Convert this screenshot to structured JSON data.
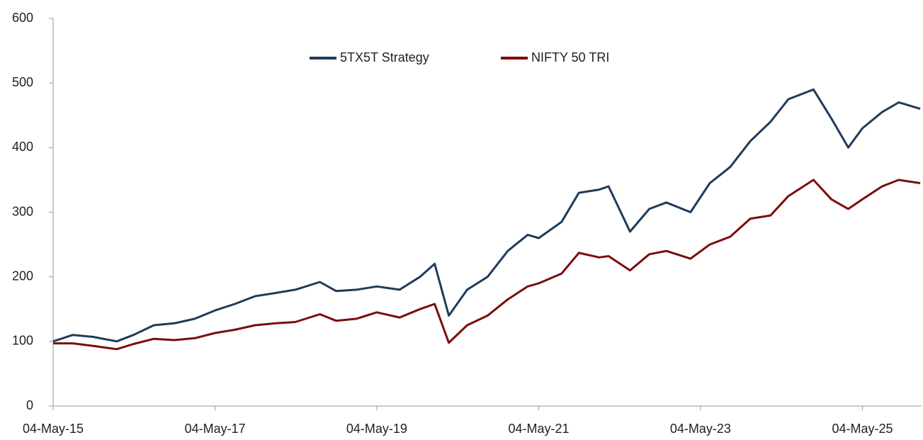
{
  "chart_data": {
    "type": "line",
    "x": [
      "2015-05-04",
      "2015-08-01",
      "2015-11-01",
      "2016-02-15",
      "2016-05-01",
      "2016-08-01",
      "2016-11-01",
      "2017-02-01",
      "2017-05-04",
      "2017-08-01",
      "2017-11-01",
      "2018-02-01",
      "2018-05-01",
      "2018-08-20",
      "2018-11-01",
      "2019-02-01",
      "2019-05-04",
      "2019-08-15",
      "2019-11-15",
      "2020-01-20",
      "2020-03-24",
      "2020-06-15",
      "2020-09-15",
      "2020-12-15",
      "2021-03-15",
      "2021-05-04",
      "2021-08-15",
      "2021-11-01",
      "2022-02-01",
      "2022-03-15",
      "2022-06-20",
      "2022-09-15",
      "2022-12-01",
      "2023-03-20",
      "2023-06-15",
      "2023-09-15",
      "2023-12-15",
      "2024-03-15",
      "2024-06-04",
      "2024-09-25",
      "2024-12-15",
      "2025-03-01",
      "2025-05-04",
      "2025-08-01",
      "2025-10-15",
      "2026-01-20"
    ],
    "series": [
      {
        "name": "5TX5T Strategy",
        "color": "#1f3b5a",
        "values": [
          100,
          110,
          107,
          100,
          110,
          125,
          128,
          135,
          148,
          158,
          170,
          175,
          180,
          192,
          178,
          180,
          185,
          180,
          200,
          220,
          140,
          180,
          200,
          240,
          265,
          260,
          285,
          330,
          335,
          340,
          270,
          305,
          315,
          300,
          345,
          370,
          410,
          440,
          475,
          490,
          445,
          400,
          430,
          455,
          470,
          460
        ]
      },
      {
        "name": "NIFTY 50 TRI",
        "color": "#7b0d0d",
        "values": [
          97,
          97,
          93,
          88,
          96,
          104,
          102,
          105,
          113,
          118,
          125,
          128,
          130,
          142,
          132,
          135,
          145,
          137,
          150,
          158,
          98,
          125,
          140,
          165,
          185,
          190,
          205,
          237,
          230,
          232,
          210,
          235,
          240,
          228,
          250,
          262,
          290,
          295,
          325,
          350,
          320,
          305,
          320,
          340,
          350,
          345
        ]
      }
    ],
    "xlim": [
      "2015-05-04",
      "2026-01-26"
    ],
    "xticks": [
      {
        "value": "2015-05-04",
        "label": "04-May-15"
      },
      {
        "value": "2017-05-04",
        "label": "04-May-17"
      },
      {
        "value": "2019-05-04",
        "label": "04-May-19"
      },
      {
        "value": "2021-05-04",
        "label": "04-May-21"
      },
      {
        "value": "2023-05-04",
        "label": "04-May-23"
      },
      {
        "value": "2025-05-04",
        "label": "04-May-25"
      }
    ],
    "ylim": [
      0,
      600
    ],
    "yticks": [
      0,
      100,
      200,
      300,
      400,
      500,
      600
    ],
    "grid": false,
    "legend": "top"
  }
}
